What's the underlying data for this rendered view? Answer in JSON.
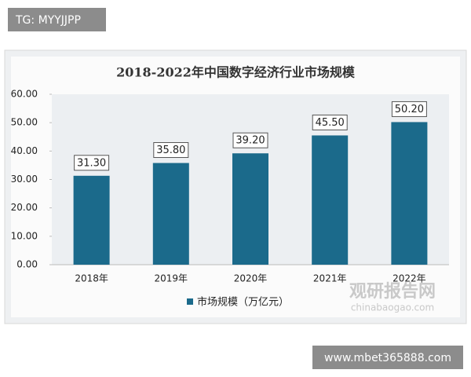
{
  "chart_data": {
    "type": "bar",
    "title": "2018-2022年中国数字经济行业市场规模",
    "categories": [
      "2018年",
      "2019年",
      "2020年",
      "2021年",
      "2022年"
    ],
    "series": [
      {
        "name": "市场规模（万亿元）",
        "color": "#1b6a8b",
        "values": [
          31.3,
          35.8,
          39.2,
          45.5,
          50.2
        ],
        "value_labels": [
          "31.30",
          "35.80",
          "39.20",
          "45.50",
          "50.20"
        ]
      }
    ],
    "ylim": [
      0,
      60
    ],
    "yticks": [
      {
        "value": 0,
        "label": "0.00"
      },
      {
        "value": 10,
        "label": "10.00"
      },
      {
        "value": 20,
        "label": "20.00"
      },
      {
        "value": 30,
        "label": "30.00"
      },
      {
        "value": 40,
        "label": "40.00"
      },
      {
        "value": 50,
        "label": "50.00"
      },
      {
        "value": 60,
        "label": "60.00"
      }
    ],
    "legend": "bottom"
  },
  "overlay": {
    "tag": "TG: MYYJJPP",
    "url": "www.mbet365888.com"
  },
  "watermark": {
    "name": "观研报告网",
    "site": "chinabaogao.com"
  }
}
